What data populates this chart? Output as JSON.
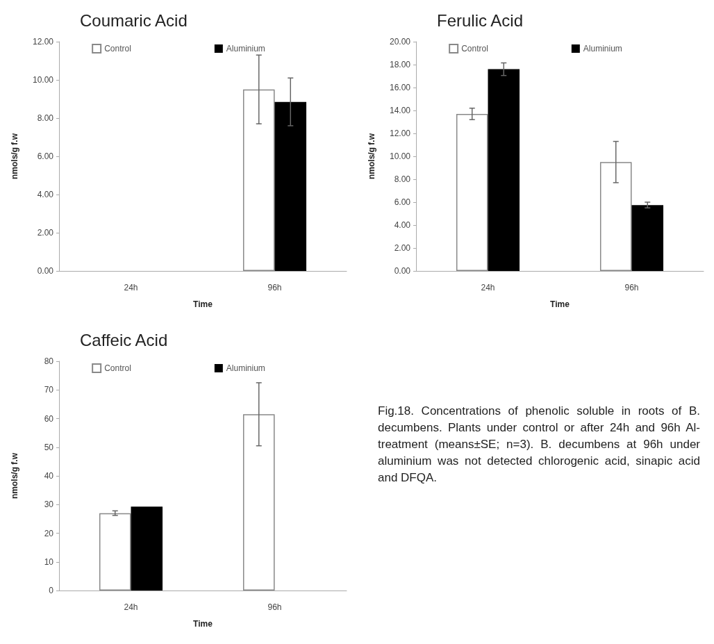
{
  "chart_data": [
    {
      "type": "bar",
      "title": "Coumaric Acid",
      "xlabel": "Time",
      "ylabel": "nmols/g f.w",
      "categories": [
        "24h",
        "96h"
      ],
      "series": [
        {
          "name": "Control",
          "color": "#ffffff",
          "values": [
            null,
            9.5
          ],
          "errors": [
            null,
            1.8
          ]
        },
        {
          "name": "Aluminium",
          "color": "#000000",
          "values": [
            null,
            8.85
          ],
          "errors": [
            null,
            1.25
          ]
        }
      ],
      "ylim": [
        0,
        12
      ],
      "yticks": [
        {
          "value": 0,
          "label": "0.00"
        },
        {
          "value": 2,
          "label": "2.00"
        },
        {
          "value": 4,
          "label": "4.00"
        },
        {
          "value": 6,
          "label": "6.00"
        },
        {
          "value": 8,
          "label": "8.00"
        },
        {
          "value": 10,
          "label": "10.00"
        },
        {
          "value": 12,
          "label": "12.00"
        }
      ],
      "grid": false,
      "legend": "top"
    },
    {
      "type": "bar",
      "title": "Ferulic Acid",
      "xlabel": "Time",
      "ylabel": "nmols/g f.w",
      "categories": [
        "24h",
        "96h"
      ],
      "series": [
        {
          "name": "Control",
          "color": "#ffffff",
          "values": [
            13.7,
            9.5
          ],
          "errors": [
            0.5,
            1.8
          ]
        },
        {
          "name": "Aluminium",
          "color": "#000000",
          "values": [
            17.6,
            5.75
          ],
          "errors": [
            0.55,
            0.25
          ]
        }
      ],
      "ylim": [
        0,
        20
      ],
      "yticks": [
        {
          "value": 0,
          "label": "0.00"
        },
        {
          "value": 2,
          "label": "2.00"
        },
        {
          "value": 4,
          "label": "4.00"
        },
        {
          "value": 6,
          "label": "6.00"
        },
        {
          "value": 8,
          "label": "8.00"
        },
        {
          "value": 10,
          "label": "10.00"
        },
        {
          "value": 12,
          "label": "12.00"
        },
        {
          "value": 14,
          "label": "14.00"
        },
        {
          "value": 16,
          "label": "16.00"
        },
        {
          "value": 18,
          "label": "18.00"
        },
        {
          "value": 20,
          "label": "20.00"
        }
      ],
      "grid": false,
      "legend": "top"
    },
    {
      "type": "bar",
      "title": "Caffeic Acid",
      "xlabel": "Time",
      "ylabel": "nmols/g f.w",
      "categories": [
        "24h",
        "96h"
      ],
      "series": [
        {
          "name": "Control",
          "color": "#ffffff",
          "values": [
            27,
            61.5
          ],
          "errors": [
            0.8,
            11
          ]
        },
        {
          "name": "Aluminium",
          "color": "#000000",
          "values": [
            29.3,
            null
          ],
          "errors": [
            null,
            null
          ]
        }
      ],
      "ylim": [
        0,
        80
      ],
      "yticks": [
        0,
        10,
        20,
        30,
        40,
        50,
        60,
        70,
        80
      ],
      "grid": false,
      "legend": "top"
    },
    {
      "type": "other",
      "annotations": [
        "Fig.18. Concentrations of phenolic soluble in roots of B. decumbens. Plants under control or after 24h and 96h Al-treatment (means±SE; n=3). B. decumbens at 96h under aluminium was not detected chlorogenic acid, sinapic acid and DFQA."
      ]
    }
  ]
}
